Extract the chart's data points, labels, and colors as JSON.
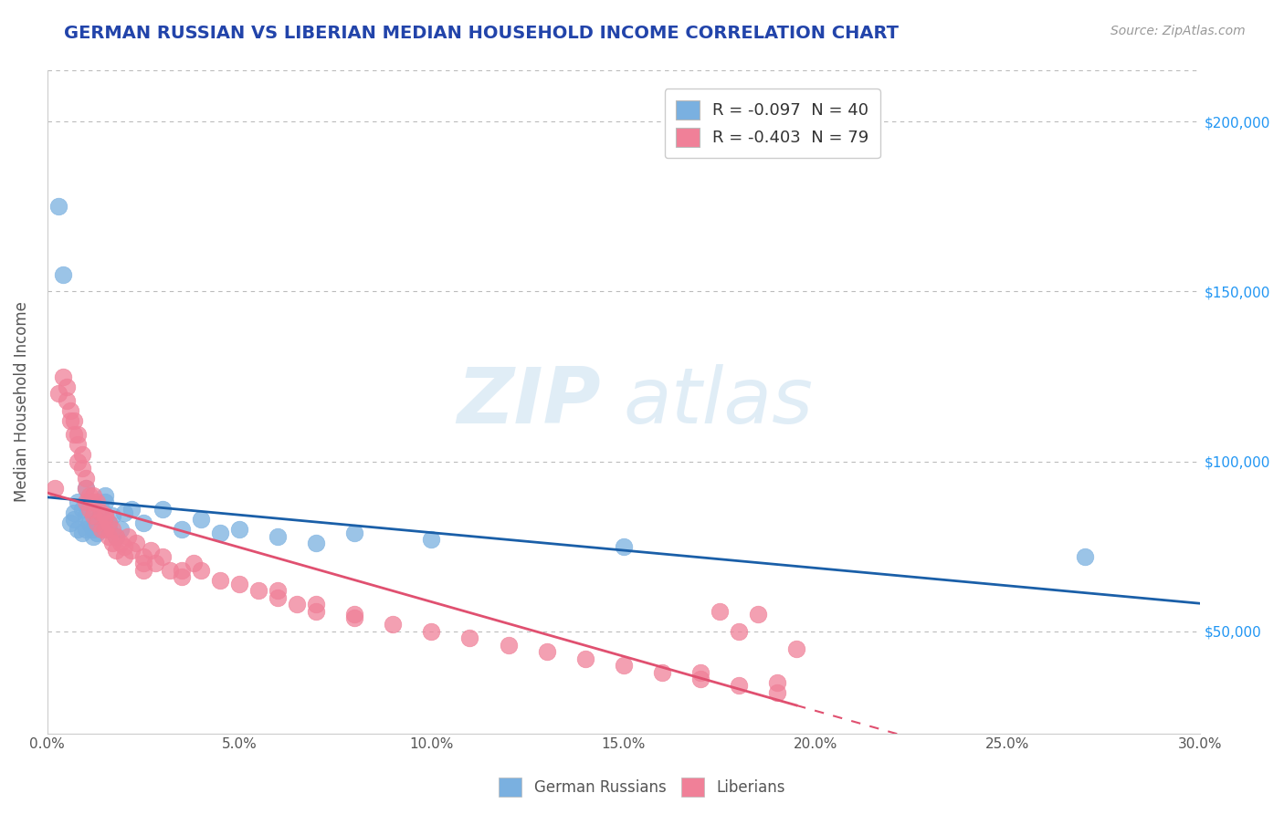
{
  "title": "GERMAN RUSSIAN VS LIBERIAN MEDIAN HOUSEHOLD INCOME CORRELATION CHART",
  "source": "Source: ZipAtlas.com",
  "ylabel": "Median Household Income",
  "xlim": [
    0.0,
    0.3
  ],
  "ylim": [
    20000,
    215000
  ],
  "yticks": [
    50000,
    100000,
    150000,
    200000
  ],
  "ytick_labels": [
    "$50,000",
    "$100,000",
    "$150,000",
    "$200,000"
  ],
  "xticks": [
    0.0,
    0.05,
    0.1,
    0.15,
    0.2,
    0.25,
    0.3
  ],
  "xtick_labels": [
    "0.0%",
    "5.0%",
    "10.0%",
    "15.0%",
    "20.0%",
    "25.0%",
    "30.0%"
  ],
  "legend_label_blue": "R = -0.097  N = 40",
  "legend_label_pink": "R = -0.403  N = 79",
  "blue_color": "#7ab0e0",
  "pink_color": "#f08098",
  "blue_line_color": "#1a5fa8",
  "pink_line_color": "#e05070",
  "watermark_zip": "ZIP",
  "watermark_atlas": "atlas",
  "background_color": "#ffffff",
  "grid_color": "#bbbbbb",
  "title_color": "#2244aa",
  "axis_label_color": "#555555",
  "right_tick_color": "#2196F3",
  "german_russian_points_x": [
    0.003,
    0.004,
    0.006,
    0.007,
    0.007,
    0.008,
    0.008,
    0.009,
    0.009,
    0.01,
    0.01,
    0.01,
    0.011,
    0.011,
    0.012,
    0.012,
    0.013,
    0.013,
    0.014,
    0.015,
    0.015,
    0.016,
    0.016,
    0.017,
    0.018,
    0.019,
    0.02,
    0.022,
    0.025,
    0.03,
    0.035,
    0.04,
    0.045,
    0.05,
    0.06,
    0.07,
    0.08,
    0.1,
    0.15,
    0.27
  ],
  "german_russian_points_y": [
    175000,
    155000,
    82000,
    83000,
    85000,
    88000,
    80000,
    79000,
    86000,
    84000,
    92000,
    80000,
    82000,
    88000,
    80000,
    78000,
    83000,
    79000,
    86000,
    88000,
    90000,
    82000,
    80000,
    84000,
    78000,
    80000,
    85000,
    86000,
    82000,
    86000,
    80000,
    83000,
    79000,
    80000,
    78000,
    76000,
    79000,
    77000,
    75000,
    72000
  ],
  "liberian_points_x": [
    0.002,
    0.003,
    0.004,
    0.005,
    0.005,
    0.006,
    0.006,
    0.007,
    0.007,
    0.008,
    0.008,
    0.008,
    0.009,
    0.009,
    0.01,
    0.01,
    0.01,
    0.011,
    0.011,
    0.012,
    0.012,
    0.012,
    0.013,
    0.013,
    0.014,
    0.014,
    0.015,
    0.015,
    0.016,
    0.016,
    0.017,
    0.017,
    0.018,
    0.018,
    0.019,
    0.02,
    0.02,
    0.021,
    0.022,
    0.023,
    0.025,
    0.025,
    0.027,
    0.028,
    0.03,
    0.032,
    0.035,
    0.038,
    0.04,
    0.045,
    0.05,
    0.055,
    0.06,
    0.065,
    0.07,
    0.08,
    0.09,
    0.1,
    0.11,
    0.12,
    0.13,
    0.14,
    0.15,
    0.16,
    0.17,
    0.175,
    0.18,
    0.185,
    0.19,
    0.195,
    0.06,
    0.07,
    0.08,
    0.17,
    0.18,
    0.035,
    0.025,
    0.015,
    0.19
  ],
  "liberian_points_y": [
    92000,
    120000,
    125000,
    122000,
    118000,
    115000,
    112000,
    108000,
    112000,
    105000,
    100000,
    108000,
    98000,
    102000,
    95000,
    88000,
    92000,
    90000,
    86000,
    88000,
    84000,
    90000,
    82000,
    88000,
    85000,
    80000,
    84000,
    80000,
    82000,
    78000,
    80000,
    76000,
    78000,
    74000,
    76000,
    75000,
    72000,
    78000,
    74000,
    76000,
    72000,
    68000,
    74000,
    70000,
    72000,
    68000,
    66000,
    70000,
    68000,
    65000,
    64000,
    62000,
    60000,
    58000,
    56000,
    55000,
    52000,
    50000,
    48000,
    46000,
    44000,
    42000,
    40000,
    38000,
    36000,
    56000,
    50000,
    55000,
    35000,
    45000,
    62000,
    58000,
    54000,
    38000,
    34000,
    68000,
    70000,
    84000,
    32000
  ]
}
